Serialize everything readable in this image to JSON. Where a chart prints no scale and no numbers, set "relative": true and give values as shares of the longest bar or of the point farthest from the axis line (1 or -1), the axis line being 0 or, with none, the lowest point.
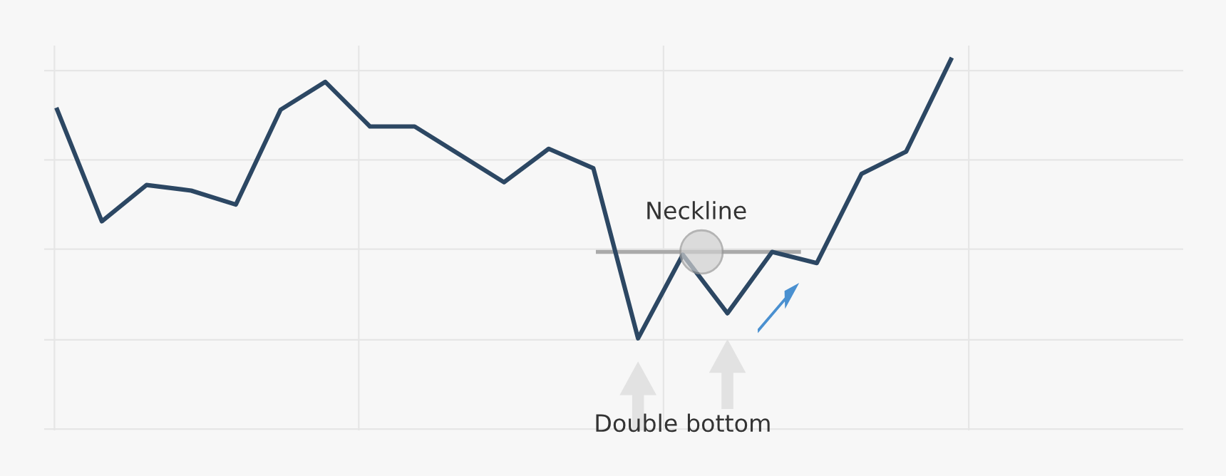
{
  "chart_data": {
    "type": "line",
    "relative": true,
    "categories": [
      null,
      null,
      null,
      null,
      null,
      null,
      null,
      null,
      null,
      null,
      null,
      null,
      null,
      null,
      null,
      null,
      null,
      null,
      null,
      null,
      null
    ],
    "series": [
      {
        "color": "#2c4763",
        "values": [
          0.82,
          0.42,
          0.55,
          0.53,
          0.48,
          0.82,
          0.92,
          0.76,
          0.76,
          0.66,
          0.56,
          0.68,
          0.61,
          0,
          0.3,
          0.09,
          0.31,
          0.27,
          0.59,
          0.67,
          1
        ]
      }
    ],
    "ref_lines": [
      {
        "axis": "y",
        "value": 0.31,
        "label": "Neckline",
        "color": "#aaaaaa"
      }
    ],
    "annotations": [
      "Double bottom"
    ],
    "grid": true,
    "legend": false,
    "marker": "none",
    "line_style": "solid"
  }
}
